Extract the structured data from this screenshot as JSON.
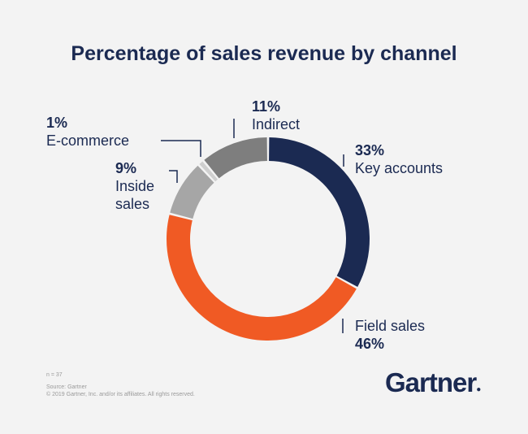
{
  "chart_data": {
    "type": "pie",
    "title": "Percentage of sales revenue by channel",
    "donut": true,
    "slices": [
      {
        "label": "Key accounts",
        "value": 33,
        "value_label": "33%",
        "color": "#1b2a52"
      },
      {
        "label": "Field sales",
        "value": 46,
        "value_label": "46%",
        "color": "#f05a24"
      },
      {
        "label": "Inside sales",
        "value": 9,
        "value_label": "9%",
        "color": "#a6a6a6"
      },
      {
        "label": "E-commerce",
        "value": 1,
        "value_label": "1%",
        "color": "#cfcfcf"
      },
      {
        "label": "Indirect",
        "value": 11,
        "value_label": "11%",
        "color": "#7e7e7e"
      }
    ]
  },
  "footer": {
    "n": "n = 37",
    "source": "Source: Gartner",
    "copyright": "© 2019 Gartner, Inc. and/or its affiliates. All rights reserved."
  },
  "logo": "Gartner."
}
